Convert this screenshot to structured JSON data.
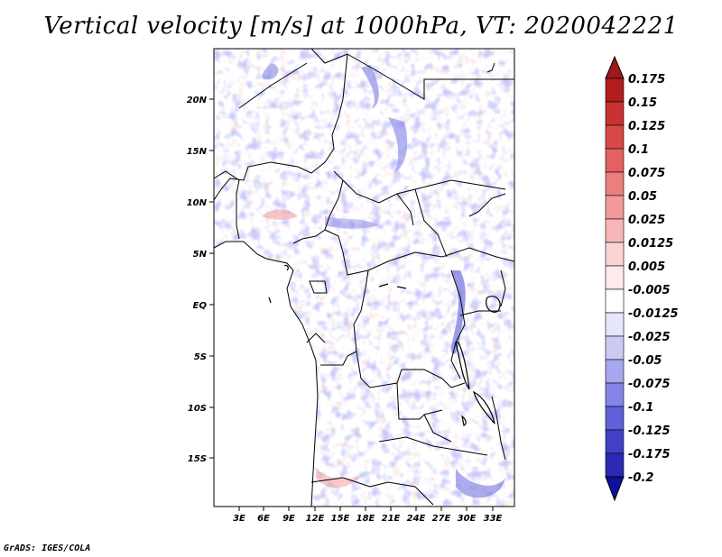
{
  "title": "Vertical velocity [m/s] at 1000hPa, VT: 2020042221",
  "credit": "GrADS: IGES/COLA",
  "map": {
    "lat_labels": [
      "20N",
      "15N",
      "10N",
      "5N",
      "EQ",
      "5S",
      "10S",
      "15S"
    ],
    "lon_labels": [
      "3E",
      "6E",
      "9E",
      "12E",
      "15E",
      "18E",
      "21E",
      "24E",
      "27E",
      "30E",
      "33E"
    ],
    "lat_range": [
      -20,
      24.5
    ],
    "lon_range": [
      0.3,
      35
    ],
    "lat_ticks": [
      20,
      15,
      10,
      5,
      0,
      -5,
      -10,
      -15
    ],
    "lon_ticks": [
      3,
      6,
      9,
      12,
      15,
      18,
      21,
      24,
      27,
      30,
      33
    ]
  },
  "colorbar": {
    "labels": [
      "0.175",
      "0.15",
      "0.125",
      "0.1",
      "0.075",
      "0.05",
      "0.025",
      "0.0125",
      "0.005",
      "-0.005",
      "-0.0125",
      "-0.025",
      "-0.05",
      "-0.075",
      "-0.1",
      "-0.125",
      "-0.175",
      "-0.2"
    ],
    "colors": [
      "#b31d1d",
      "#c83232",
      "#d84848",
      "#e56060",
      "#ec7e7e",
      "#f29a9a",
      "#f7b7b7",
      "#fbd3d3",
      "#fdeaea",
      "#ffffff",
      "#e6e6fb",
      "#cacaf5",
      "#a7a7ef",
      "#8585e6",
      "#6060d8",
      "#4141c8",
      "#2a2ab5",
      "#1a1aa0"
    ],
    "top_color": "#a01818",
    "bottom_color": "#1010a0"
  }
}
